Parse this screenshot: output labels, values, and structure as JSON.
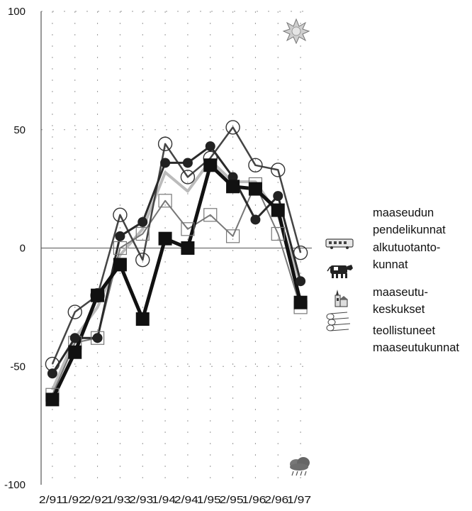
{
  "chart_data": {
    "type": "line",
    "categories": [
      "2/91",
      "1/92",
      "2/92",
      "1/93",
      "2/93",
      "1/94",
      "2/94",
      "1/95",
      "2/95",
      "1/96",
      "2/96",
      "1/97"
    ],
    "ylim": [
      -100,
      100
    ],
    "yticks": [
      100,
      50,
      0,
      -50,
      -100
    ],
    "grid": true,
    "legend": [
      "maaseudun",
      "pendelikunnat",
      "alkutuotanto-",
      "kunnat",
      "maaseutu-",
      "keskukset",
      "teollistuneet",
      "maaseutukunnat"
    ],
    "legend_icons": [
      "bus-icon",
      "cow-icon",
      "church-icon",
      "logs-icon"
    ],
    "corner_icons": [
      "sun-icon",
      "rain-cloud-icon"
    ],
    "series": [
      {
        "values": [
          -49,
          -27,
          -20,
          14,
          -5,
          44,
          30,
          38,
          51,
          35,
          33,
          -2
        ],
        "marker": "open-circle",
        "color": "#444444"
      },
      {
        "values": [
          -53,
          -38,
          -38,
          5,
          11,
          36,
          36,
          43,
          30,
          12,
          22,
          -14
        ],
        "marker": "filled-circle",
        "color": "#2a2a2a"
      },
      {
        "values": [
          -62,
          -40,
          -38,
          0,
          6,
          20,
          8,
          14,
          5,
          27,
          6,
          -25
        ],
        "marker": "open-square",
        "color": "#777777"
      },
      {
        "values": [
          -64,
          -44,
          -20,
          -7,
          -30,
          4,
          0,
          35,
          26,
          25,
          16,
          -23
        ],
        "marker": "filled-square",
        "color": "#111111"
      },
      {
        "values": [
          -60,
          -38,
          -25,
          -3,
          8,
          32,
          24,
          37,
          28,
          28,
          14,
          -15
        ],
        "marker": "none",
        "color": "#bbbbbb"
      }
    ]
  }
}
